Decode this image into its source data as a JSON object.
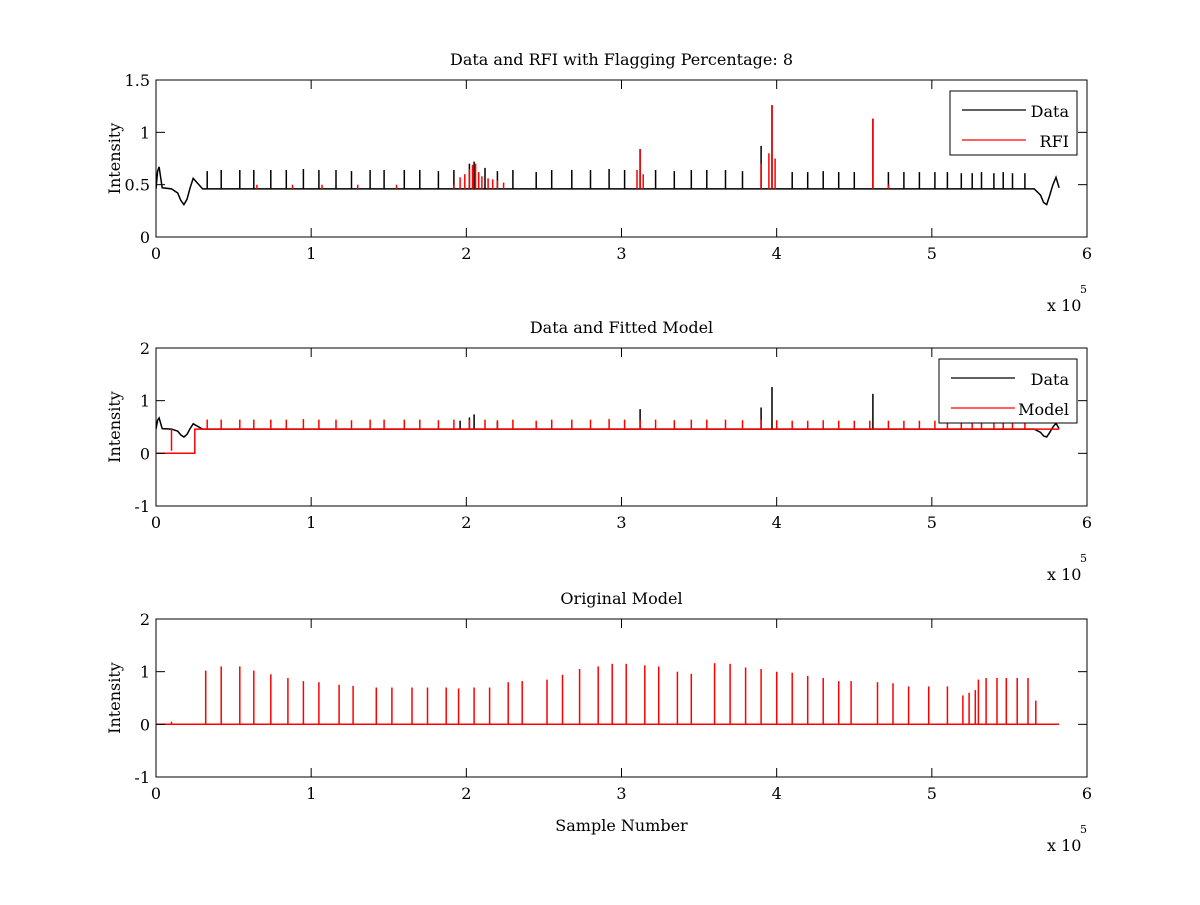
{
  "chart_data": [
    {
      "type": "line",
      "title": "Data and RFI with Flagging Percentage: 8",
      "xlabel": "",
      "ylabel": "Intensity",
      "xlim": [
        0,
        6
      ],
      "ylim": [
        0,
        1.5
      ],
      "xticks": [
        "0",
        "1",
        "2",
        "3",
        "4",
        "5",
        "6"
      ],
      "yticks": [
        "0",
        "0.5",
        "1",
        "1.5"
      ],
      "x_multiplier_base": "x 10",
      "x_multiplier_exp": "5",
      "legend_position": "top-right",
      "grid": false,
      "series": [
        {
          "name": "Data",
          "color": "#000000",
          "baseline": 0.46,
          "x": [
            0.0,
            0.01,
            0.02,
            0.04,
            0.1,
            0.14,
            0.16,
            0.18,
            0.2,
            0.22,
            0.24,
            0.3,
            1.0,
            2.0,
            3.0,
            4.0,
            5.0,
            5.6,
            5.66,
            5.7,
            5.72,
            5.74,
            5.76,
            5.78,
            5.8,
            5.82
          ],
          "y": [
            0.46,
            0.63,
            0.67,
            0.47,
            0.46,
            0.42,
            0.35,
            0.31,
            0.36,
            0.47,
            0.56,
            0.46,
            0.46,
            0.46,
            0.46,
            0.46,
            0.46,
            0.46,
            0.46,
            0.4,
            0.33,
            0.31,
            0.4,
            0.5,
            0.57,
            0.47
          ],
          "spikes": [
            [
              0.33,
              0.63
            ],
            [
              0.42,
              0.64
            ],
            [
              0.54,
              0.64
            ],
            [
              0.63,
              0.64
            ],
            [
              0.74,
              0.64
            ],
            [
              0.84,
              0.64
            ],
            [
              0.95,
              0.65
            ],
            [
              1.05,
              0.64
            ],
            [
              1.16,
              0.64
            ],
            [
              1.26,
              0.63
            ],
            [
              1.38,
              0.64
            ],
            [
              1.47,
              0.64
            ],
            [
              1.6,
              0.64
            ],
            [
              1.7,
              0.64
            ],
            [
              1.82,
              0.63
            ],
            [
              1.92,
              0.64
            ],
            [
              2.02,
              0.7
            ],
            [
              2.05,
              0.72
            ],
            [
              2.12,
              0.66
            ],
            [
              2.2,
              0.63
            ],
            [
              2.3,
              0.64
            ],
            [
              2.45,
              0.62
            ],
            [
              2.55,
              0.64
            ],
            [
              2.68,
              0.64
            ],
            [
              2.8,
              0.64
            ],
            [
              2.92,
              0.65
            ],
            [
              3.02,
              0.64
            ],
            [
              3.12,
              0.84
            ],
            [
              3.22,
              0.64
            ],
            [
              3.34,
              0.63
            ],
            [
              3.45,
              0.64
            ],
            [
              3.55,
              0.64
            ],
            [
              3.67,
              0.64
            ],
            [
              3.78,
              0.63
            ],
            [
              3.9,
              0.87
            ],
            [
              3.97,
              1.26
            ],
            [
              4.1,
              0.62
            ],
            [
              4.2,
              0.62
            ],
            [
              4.3,
              0.63
            ],
            [
              4.4,
              0.62
            ],
            [
              4.5,
              0.62
            ],
            [
              4.62,
              1.13
            ],
            [
              4.72,
              0.62
            ],
            [
              4.82,
              0.62
            ],
            [
              4.92,
              0.62
            ],
            [
              5.02,
              0.62
            ],
            [
              5.1,
              0.62
            ],
            [
              5.19,
              0.61
            ],
            [
              5.26,
              0.61
            ],
            [
              5.32,
              0.62
            ],
            [
              5.4,
              0.61
            ],
            [
              5.46,
              0.62
            ],
            [
              5.52,
              0.61
            ],
            [
              5.6,
              0.61
            ]
          ]
        },
        {
          "name": "RFI",
          "color": "#ff0000",
          "baseline": 0.46,
          "x": [],
          "y": [],
          "spikes": [
            [
              0.65,
              0.5
            ],
            [
              0.88,
              0.5
            ],
            [
              1.07,
              0.5
            ],
            [
              1.3,
              0.5
            ],
            [
              1.55,
              0.5
            ],
            [
              1.92,
              0.5
            ],
            [
              1.96,
              0.57
            ],
            [
              1.99,
              0.6
            ],
            [
              2.02,
              0.65
            ],
            [
              2.04,
              0.69
            ],
            [
              2.06,
              0.7
            ],
            [
              2.08,
              0.62
            ],
            [
              2.1,
              0.58
            ],
            [
              2.14,
              0.56
            ],
            [
              2.17,
              0.55
            ],
            [
              2.2,
              0.54
            ],
            [
              2.24,
              0.52
            ],
            [
              3.1,
              0.64
            ],
            [
              3.12,
              0.84
            ],
            [
              3.14,
              0.6
            ],
            [
              3.9,
              0.7
            ],
            [
              3.95,
              0.8
            ],
            [
              3.97,
              1.26
            ],
            [
              3.99,
              0.75
            ],
            [
              4.62,
              1.13
            ],
            [
              4.72,
              0.5
            ]
          ]
        }
      ]
    },
    {
      "type": "line",
      "title": "Data and Fitted Model",
      "xlabel": "",
      "ylabel": "Intensity",
      "xlim": [
        0,
        6
      ],
      "ylim": [
        -1,
        2
      ],
      "xticks": [
        "0",
        "1",
        "2",
        "3",
        "4",
        "5",
        "6"
      ],
      "yticks": [
        "-1",
        "0",
        "1",
        "2"
      ],
      "x_multiplier_base": "x 10",
      "x_multiplier_exp": "5",
      "legend_position": "top-right",
      "grid": false,
      "series": [
        {
          "name": "Data",
          "color": "#000000",
          "baseline": 0.46,
          "x": [
            0.0,
            0.01,
            0.02,
            0.04,
            0.1,
            0.14,
            0.16,
            0.18,
            0.2,
            0.22,
            0.24,
            0.3,
            1.0,
            2.0,
            3.0,
            4.0,
            5.0,
            5.6,
            5.66,
            5.7,
            5.72,
            5.74,
            5.76,
            5.78,
            5.8,
            5.82
          ],
          "y": [
            0.46,
            0.63,
            0.67,
            0.47,
            0.46,
            0.42,
            0.35,
            0.31,
            0.36,
            0.47,
            0.56,
            0.46,
            0.46,
            0.46,
            0.46,
            0.46,
            0.46,
            0.46,
            0.46,
            0.4,
            0.33,
            0.31,
            0.4,
            0.5,
            0.57,
            0.47
          ],
          "spikes": [
            [
              1.96,
              0.62
            ],
            [
              2.02,
              0.68
            ],
            [
              2.05,
              0.74
            ],
            [
              2.2,
              0.6
            ],
            [
              3.12,
              0.84
            ],
            [
              3.9,
              0.87
            ],
            [
              3.97,
              1.26
            ],
            [
              4.62,
              1.13
            ]
          ]
        },
        {
          "name": "Model",
          "color": "#ff0000",
          "baseline": 0.46,
          "x": [
            0.0,
            0.25,
            0.25,
            5.82
          ],
          "y": [
            0.0,
            0.0,
            0.46,
            0.46
          ],
          "spikes": [
            [
              0.1,
              0.05
            ],
            [
              0.33,
              0.64
            ],
            [
              0.42,
              0.64
            ],
            [
              0.54,
              0.64
            ],
            [
              0.63,
              0.64
            ],
            [
              0.74,
              0.64
            ],
            [
              0.84,
              0.64
            ],
            [
              0.95,
              0.65
            ],
            [
              1.05,
              0.64
            ],
            [
              1.16,
              0.64
            ],
            [
              1.26,
              0.63
            ],
            [
              1.38,
              0.64
            ],
            [
              1.47,
              0.64
            ],
            [
              1.6,
              0.64
            ],
            [
              1.7,
              0.64
            ],
            [
              1.82,
              0.63
            ],
            [
              1.92,
              0.64
            ],
            [
              2.02,
              0.64
            ],
            [
              2.12,
              0.64
            ],
            [
              2.2,
              0.63
            ],
            [
              2.3,
              0.64
            ],
            [
              2.45,
              0.62
            ],
            [
              2.55,
              0.64
            ],
            [
              2.68,
              0.64
            ],
            [
              2.8,
              0.64
            ],
            [
              2.92,
              0.65
            ],
            [
              3.02,
              0.64
            ],
            [
              3.12,
              0.64
            ],
            [
              3.22,
              0.64
            ],
            [
              3.34,
              0.63
            ],
            [
              3.45,
              0.64
            ],
            [
              3.55,
              0.64
            ],
            [
              3.67,
              0.64
            ],
            [
              3.78,
              0.63
            ],
            [
              3.9,
              0.64
            ],
            [
              4.0,
              0.63
            ],
            [
              4.1,
              0.62
            ],
            [
              4.2,
              0.62
            ],
            [
              4.3,
              0.63
            ],
            [
              4.4,
              0.62
            ],
            [
              4.5,
              0.62
            ],
            [
              4.6,
              0.62
            ],
            [
              4.72,
              0.62
            ],
            [
              4.82,
              0.62
            ],
            [
              4.92,
              0.62
            ],
            [
              5.02,
              0.62
            ],
            [
              5.1,
              0.62
            ],
            [
              5.19,
              0.61
            ],
            [
              5.26,
              0.61
            ],
            [
              5.32,
              0.62
            ],
            [
              5.4,
              0.61
            ],
            [
              5.46,
              0.62
            ],
            [
              5.52,
              0.61
            ],
            [
              5.6,
              0.61
            ]
          ]
        }
      ]
    },
    {
      "type": "line",
      "title": "Original Model",
      "xlabel": "Sample Number",
      "ylabel": "Intensity",
      "xlim": [
        0,
        6
      ],
      "ylim": [
        -1,
        2
      ],
      "xticks": [
        "0",
        "1",
        "2",
        "3",
        "4",
        "5",
        "6"
      ],
      "yticks": [
        "-1",
        "0",
        "1",
        "2"
      ],
      "x_multiplier_base": "x 10",
      "x_multiplier_exp": "5",
      "legend_position": "none",
      "grid": false,
      "series": [
        {
          "name": "",
          "color": "#ff0000",
          "baseline": 0.0,
          "x": [
            0.0,
            5.82
          ],
          "y": [
            0.0,
            0.0
          ],
          "spikes": [
            [
              0.1,
              0.05
            ],
            [
              0.32,
              1.02
            ],
            [
              0.42,
              1.1
            ],
            [
              0.54,
              1.1
            ],
            [
              0.63,
              1.02
            ],
            [
              0.74,
              0.95
            ],
            [
              0.85,
              0.88
            ],
            [
              0.95,
              0.82
            ],
            [
              1.05,
              0.8
            ],
            [
              1.18,
              0.75
            ],
            [
              1.27,
              0.73
            ],
            [
              1.42,
              0.7
            ],
            [
              1.52,
              0.7
            ],
            [
              1.65,
              0.7
            ],
            [
              1.75,
              0.7
            ],
            [
              1.87,
              0.7
            ],
            [
              1.95,
              0.68
            ],
            [
              2.05,
              0.7
            ],
            [
              2.15,
              0.7
            ],
            [
              2.27,
              0.8
            ],
            [
              2.36,
              0.82
            ],
            [
              2.52,
              0.85
            ],
            [
              2.62,
              0.94
            ],
            [
              2.73,
              1.05
            ],
            [
              2.85,
              1.1
            ],
            [
              2.94,
              1.15
            ],
            [
              3.03,
              1.15
            ],
            [
              3.15,
              1.12
            ],
            [
              3.24,
              1.1
            ],
            [
              3.36,
              1.0
            ],
            [
              3.45,
              0.96
            ],
            [
              3.6,
              1.16
            ],
            [
              3.7,
              1.15
            ],
            [
              3.8,
              1.08
            ],
            [
              3.9,
              1.05
            ],
            [
              4.0,
              1.0
            ],
            [
              4.1,
              0.98
            ],
            [
              4.2,
              0.92
            ],
            [
              4.3,
              0.88
            ],
            [
              4.4,
              0.82
            ],
            [
              4.48,
              0.82
            ],
            [
              4.65,
              0.8
            ],
            [
              4.75,
              0.78
            ],
            [
              4.85,
              0.72
            ],
            [
              4.98,
              0.72
            ],
            [
              5.1,
              0.72
            ],
            [
              5.2,
              0.55
            ],
            [
              5.24,
              0.6
            ],
            [
              5.28,
              0.65
            ],
            [
              5.3,
              0.85
            ],
            [
              5.35,
              0.88
            ],
            [
              5.42,
              0.88
            ],
            [
              5.48,
              0.88
            ],
            [
              5.55,
              0.88
            ],
            [
              5.62,
              0.88
            ],
            [
              5.67,
              0.45
            ]
          ]
        }
      ]
    }
  ]
}
